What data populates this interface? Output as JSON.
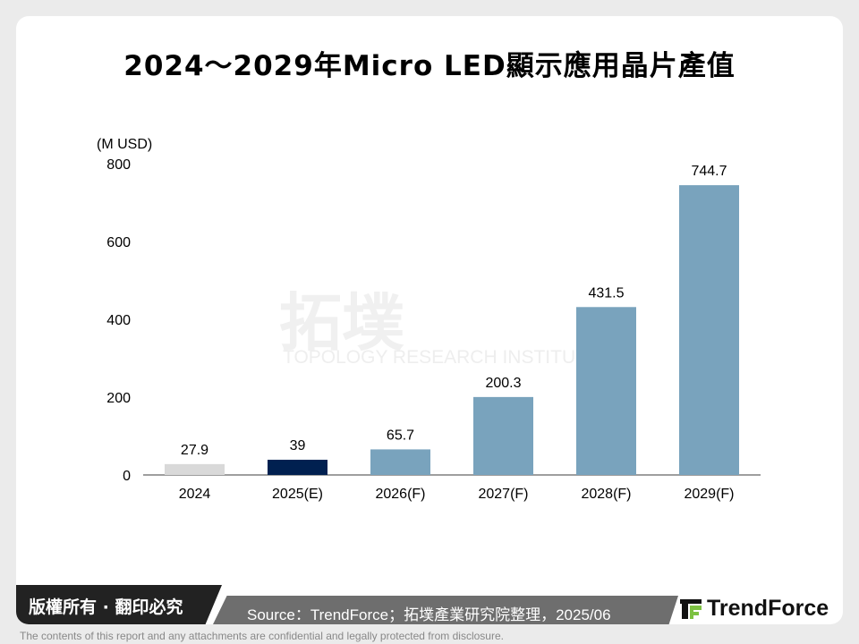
{
  "title": "2024～2029年Micro LED顯示應用晶片產值",
  "chart_data": {
    "type": "bar",
    "title": "2024～2029年Micro LED顯示應用晶片產值",
    "ylabel": "(M USD)",
    "xlabel": "",
    "categories": [
      "2024",
      "2025(E)",
      "2026(F)",
      "2027(F)",
      "2028(F)",
      "2029(F)"
    ],
    "values": [
      27.9,
      39,
      65.7,
      200.3,
      431.5,
      744.7
    ],
    "data_labels": [
      "27.9",
      "39",
      "65.7",
      "200.3",
      "431.5",
      "744.7"
    ],
    "bar_colors": [
      "#d9d9d9",
      "#002050",
      "#79a3bd",
      "#79a3bd",
      "#79a3bd",
      "#79a3bd"
    ],
    "ylim": [
      0,
      800
    ],
    "yticks": [
      "0",
      "200",
      "400",
      "600",
      "800"
    ],
    "grid": false,
    "legend": "none"
  },
  "watermark": {
    "cn": "拓墣",
    "en": "TOPOLOGY RESEARCH INSTITUTE"
  },
  "footer": {
    "copyright": "版權所有 · 翻印必究",
    "source": "Source：TrendForce；拓墣產業研究院整理，2025/06",
    "logo": "TrendForce",
    "disclaimer": "The contents of this report and any attachments are confidential and legally protected from disclosure."
  }
}
